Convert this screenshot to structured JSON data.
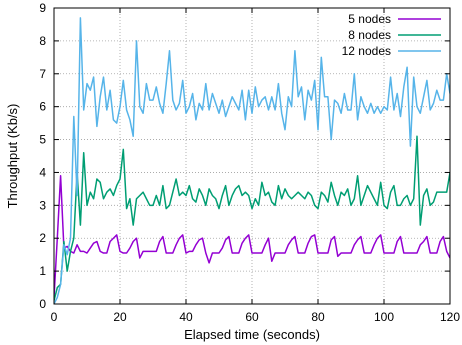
{
  "chart_data": {
    "type": "line",
    "title": "",
    "xlabel": "Elapsed time (seconds)",
    "ylabel": "Throughput (Kb/s)",
    "xlim": [
      0,
      120
    ],
    "ylim": [
      0,
      9
    ],
    "xticks": [
      "0",
      "20",
      "40",
      "60",
      "80",
      "100",
      "120"
    ],
    "yticks": [
      "0",
      "1",
      "2",
      "3",
      "4",
      "5",
      "6",
      "7",
      "8",
      "9"
    ],
    "grid": true,
    "legend_position": "top-right",
    "series": [
      {
        "name": "5 nodes",
        "color": "#9400d3",
        "x": [
          0,
          1,
          2,
          3,
          4,
          5,
          6,
          7,
          8,
          9,
          10,
          11,
          12,
          13,
          14,
          15,
          16,
          17,
          18,
          19,
          20,
          21,
          22,
          23,
          24,
          25,
          26,
          27,
          28,
          29,
          30,
          31,
          32,
          33,
          34,
          35,
          36,
          37,
          38,
          39,
          40,
          41,
          42,
          43,
          44,
          45,
          46,
          47,
          48,
          49,
          50,
          51,
          52,
          53,
          54,
          55,
          56,
          57,
          58,
          59,
          60,
          61,
          62,
          63,
          64,
          65,
          66,
          67,
          68,
          69,
          70,
          71,
          72,
          73,
          74,
          75,
          76,
          77,
          78,
          79,
          80,
          81,
          82,
          83,
          84,
          85,
          86,
          87,
          88,
          89,
          90,
          91,
          92,
          93,
          94,
          95,
          96,
          97,
          98,
          99,
          100,
          101,
          102,
          103,
          104,
          105,
          106,
          107,
          108,
          109,
          110,
          111,
          112,
          113,
          114,
          115,
          116,
          117,
          118,
          119,
          120
        ],
        "values": [
          0.2,
          2.0,
          3.9,
          1.7,
          1.75,
          1.6,
          1.55,
          1.8,
          1.6,
          1.6,
          1.55,
          1.7,
          1.85,
          1.9,
          1.6,
          1.55,
          1.55,
          1.9,
          2.0,
          2.1,
          1.6,
          1.55,
          1.55,
          1.7,
          1.9,
          2.0,
          1.4,
          1.6,
          1.6,
          1.6,
          1.6,
          1.6,
          1.9,
          2.05,
          1.55,
          1.55,
          1.55,
          1.8,
          2.0,
          2.1,
          1.55,
          1.6,
          1.6,
          1.8,
          1.95,
          2.0,
          1.55,
          1.25,
          1.55,
          1.55,
          1.55,
          1.7,
          1.95,
          2.05,
          1.55,
          1.55,
          1.55,
          1.85,
          2.0,
          2.1,
          1.55,
          1.55,
          1.55,
          1.55,
          1.8,
          2.0,
          1.3,
          1.55,
          1.55,
          1.55,
          1.55,
          1.8,
          1.95,
          2.05,
          1.55,
          1.55,
          1.55,
          1.85,
          2.05,
          2.1,
          1.55,
          1.55,
          1.55,
          1.55,
          1.95,
          2.05,
          1.45,
          1.55,
          1.55,
          1.55,
          1.55,
          1.8,
          1.95,
          2.05,
          1.55,
          1.55,
          1.55,
          1.8,
          2.0,
          2.1,
          1.55,
          1.55,
          1.55,
          1.55,
          1.9,
          2.05,
          1.55,
          1.55,
          1.55,
          1.55,
          1.55,
          1.8,
          1.9,
          2.05,
          1.55,
          1.55,
          1.55,
          1.9,
          2.05,
          1.6,
          1.4
        ]
      },
      {
        "name": "8 nodes",
        "color": "#009e73",
        "x": [
          0,
          1,
          2,
          3,
          4,
          5,
          6,
          7,
          8,
          9,
          10,
          11,
          12,
          13,
          14,
          15,
          16,
          17,
          18,
          19,
          20,
          21,
          22,
          23,
          24,
          25,
          26,
          27,
          28,
          29,
          30,
          31,
          32,
          33,
          34,
          35,
          36,
          37,
          38,
          39,
          40,
          41,
          42,
          43,
          44,
          45,
          46,
          47,
          48,
          49,
          50,
          51,
          52,
          53,
          54,
          55,
          56,
          57,
          58,
          59,
          60,
          61,
          62,
          63,
          64,
          65,
          66,
          67,
          68,
          69,
          70,
          71,
          72,
          73,
          74,
          75,
          76,
          77,
          78,
          79,
          80,
          81,
          82,
          83,
          84,
          85,
          86,
          87,
          88,
          89,
          90,
          91,
          92,
          93,
          94,
          95,
          96,
          97,
          98,
          99,
          100,
          101,
          102,
          103,
          104,
          105,
          106,
          107,
          108,
          109,
          110,
          111,
          112,
          113,
          114,
          115,
          116,
          117,
          118,
          119,
          120
        ],
        "values": [
          0.1,
          0.5,
          0.6,
          1.9,
          1.0,
          1.6,
          2.0,
          4.0,
          2.4,
          4.6,
          3.0,
          3.4,
          3.2,
          3.8,
          3.7,
          3.2,
          3.4,
          3.5,
          3.3,
          3.6,
          3.8,
          4.7,
          2.9,
          3.2,
          2.4,
          3.2,
          3.3,
          3.4,
          3.2,
          3.0,
          3.0,
          3.3,
          3.0,
          3.6,
          2.9,
          3.0,
          3.4,
          3.8,
          3.3,
          3.4,
          3.3,
          3.6,
          3.2,
          3.1,
          3.5,
          3.3,
          3.0,
          3.5,
          3.3,
          3.2,
          2.9,
          3.3,
          3.6,
          3.0,
          3.3,
          3.5,
          3.6,
          3.3,
          3.4,
          3.3,
          2.9,
          3.2,
          3.0,
          3.7,
          3.3,
          3.4,
          3.1,
          3.0,
          3.6,
          3.2,
          3.5,
          3.3,
          3.2,
          3.3,
          3.4,
          3.3,
          3.2,
          3.4,
          3.3,
          3.0,
          2.9,
          3.4,
          3.3,
          3.1,
          3.7,
          3.3,
          3.0,
          3.4,
          3.3,
          3.5,
          3.0,
          3.2,
          3.9,
          3.0,
          3.3,
          3.6,
          3.4,
          3.2,
          3.0,
          3.7,
          3.0,
          2.9,
          3.4,
          3.6,
          3.0,
          3.0,
          3.2,
          3.3,
          3.0,
          3.2,
          5.1,
          2.4,
          3.3,
          3.5,
          3.0,
          3.1,
          3.4,
          3.4,
          3.4,
          3.4,
          4.0
        ]
      },
      {
        "name": "12 nodes",
        "color": "#56b4e9",
        "x": [
          0,
          1,
          2,
          3,
          4,
          5,
          6,
          7,
          8,
          9,
          10,
          11,
          12,
          13,
          14,
          15,
          16,
          17,
          18,
          19,
          20,
          21,
          22,
          23,
          24,
          25,
          26,
          27,
          28,
          29,
          30,
          31,
          32,
          33,
          34,
          35,
          36,
          37,
          38,
          39,
          40,
          41,
          42,
          43,
          44,
          45,
          46,
          47,
          48,
          49,
          50,
          51,
          52,
          53,
          54,
          55,
          56,
          57,
          58,
          59,
          60,
          61,
          62,
          63,
          64,
          65,
          66,
          67,
          68,
          69,
          70,
          71,
          72,
          73,
          74,
          75,
          76,
          77,
          78,
          79,
          80,
          81,
          82,
          83,
          84,
          85,
          86,
          87,
          88,
          89,
          90,
          91,
          92,
          93,
          94,
          95,
          96,
          97,
          98,
          99,
          100,
          101,
          102,
          103,
          104,
          105,
          106,
          107,
          108,
          109,
          110,
          111,
          112,
          113,
          114,
          115,
          116,
          117,
          118,
          119,
          120
        ],
        "values": [
          0.0,
          0.2,
          0.6,
          1.8,
          1.5,
          2.0,
          5.7,
          3.3,
          8.7,
          5.9,
          6.7,
          6.5,
          6.9,
          5.4,
          6.3,
          6.9,
          5.9,
          6.5,
          5.6,
          5.5,
          6.0,
          6.8,
          5.9,
          5.6,
          5.1,
          8.0,
          6.0,
          5.8,
          6.7,
          6.2,
          6.2,
          6.6,
          6.1,
          5.8,
          6.7,
          7.7,
          6.2,
          5.9,
          6.1,
          6.8,
          5.8,
          6.0,
          6.4,
          5.6,
          6.1,
          5.9,
          6.7,
          5.9,
          6.4,
          6.1,
          5.8,
          6.2,
          5.7,
          6.0,
          6.3,
          6.1,
          5.9,
          6.5,
          5.6,
          6.5,
          5.8,
          6.6,
          6.0,
          6.2,
          6.3,
          5.9,
          6.3,
          5.9,
          6.7,
          5.8,
          5.3,
          6.3,
          6.0,
          7.7,
          6.3,
          6.6,
          5.6,
          6.5,
          6.2,
          6.8,
          5.3,
          7.5,
          6.3,
          6.3,
          5.0,
          6.2,
          6.1,
          5.8,
          6.4,
          5.9,
          5.9,
          7.0,
          5.6,
          6.3,
          6.0,
          5.8,
          6.1,
          5.8,
          6.0,
          5.8,
          6.0,
          5.9,
          6.9,
          5.9,
          6.4,
          5.7,
          6.6,
          7.2,
          4.8,
          6.9,
          6.0,
          5.8,
          6.3,
          6.8,
          5.9,
          6.1,
          6.5,
          6.2,
          6.2,
          7.0,
          6.4
        ]
      }
    ]
  }
}
